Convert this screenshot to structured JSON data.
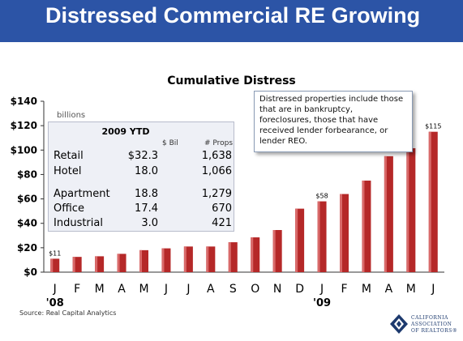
{
  "slide": {
    "title": "Distressed Commercial RE Growing",
    "source": "Source: Real Capital Analytics"
  },
  "chart_data": {
    "type": "bar",
    "title": "Cumulative Distress",
    "units_note": "billions",
    "categories": [
      "J",
      "F",
      "M",
      "A",
      "M",
      "J",
      "J",
      "A",
      "S",
      "O",
      "N",
      "D",
      "J",
      "F",
      "M",
      "A",
      "M",
      "J"
    ],
    "year_labels": [
      {
        "index": 0,
        "label": "'08"
      },
      {
        "index": 12,
        "label": "'09"
      }
    ],
    "values": [
      11,
      12.5,
      13,
      15,
      18,
      19.5,
      21,
      21,
      24.5,
      28.5,
      34.5,
      52,
      58,
      64,
      75,
      95,
      101.5,
      115
    ],
    "data_labels": [
      {
        "index": 0,
        "label": "$11"
      },
      {
        "index": 12,
        "label": "$58"
      },
      {
        "index": 17,
        "label": "$115"
      }
    ],
    "ylim": [
      0,
      140
    ],
    "yticks": [
      "$0",
      "$20",
      "$40",
      "$60",
      "$80",
      "$100",
      "$120",
      "$140"
    ],
    "ytick_values": [
      0,
      20,
      40,
      60,
      80,
      100,
      120,
      140
    ],
    "bar_color": "#b52828",
    "grid": false
  },
  "ytd_table": {
    "title": "2009 YTD",
    "col_bil": "$ Bil",
    "col_props": "# Props",
    "rows": [
      {
        "name": "Retail",
        "bil": "$32.3",
        "props": "1,638"
      },
      {
        "name": "Hotel",
        "bil": "18.0",
        "props": "1,066"
      },
      {
        "name": "Apartment",
        "bil": "18.8",
        "props": "1,279"
      },
      {
        "name": "Office",
        "bil": "17.4",
        "props": "670"
      },
      {
        "name": "Industrial",
        "bil": "3.0",
        "props": "421"
      }
    ]
  },
  "note": {
    "text": "Distressed properties include those that are in bankruptcy, foreclosures, those that have received lender forbearance, or lender REO."
  },
  "logo": {
    "line1": "CALIFORNIA",
    "line2": "ASSOCIATION",
    "line3": "OF REALTORS®",
    "color": "#1d3a6e"
  }
}
